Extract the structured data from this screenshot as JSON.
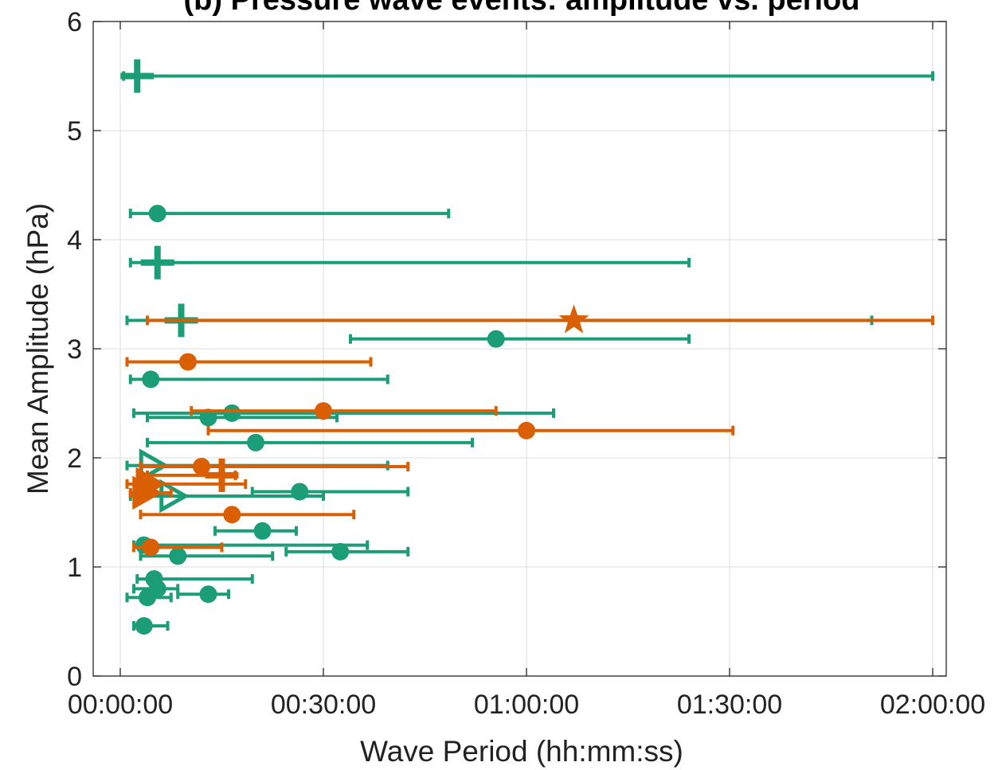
{
  "chart_data": {
    "type": "scatter",
    "title": "(b) Pressure wave events: amplitude vs. period",
    "xlabel": "Wave Period (hh:mm:ss)",
    "ylabel": "Mean Amplitude (hPa)",
    "x_unit": "minutes",
    "xlim": [
      -4,
      122
    ],
    "ylim": [
      0,
      6
    ],
    "x_ticks": [
      0,
      30,
      60,
      90,
      120
    ],
    "x_tick_labels": [
      "00:00:00",
      "00:30:00",
      "01:00:00",
      "01:30:00",
      "02:00:00"
    ],
    "y_ticks": [
      0,
      1,
      2,
      3,
      4,
      5,
      6
    ],
    "y_tick_labels": [
      "0",
      "1",
      "2",
      "3",
      "4",
      "5",
      "6"
    ],
    "grid": true,
    "colors": {
      "green": "#1b9e77",
      "orange": "#d95f02"
    },
    "series": [
      {
        "color": "green",
        "points": [
          {
            "x": 2.5,
            "y": 5.5,
            "xmin": 0.5,
            "xmax": 120,
            "marker": "plus"
          },
          {
            "x": 5.5,
            "y": 4.24,
            "xmin": 1.5,
            "xmax": 48.5,
            "marker": "circle"
          },
          {
            "x": 5.5,
            "y": 3.79,
            "xmin": 1.5,
            "xmax": 84,
            "marker": "plus"
          },
          {
            "x": 9,
            "y": 3.26,
            "xmin": 1,
            "xmax": 111,
            "marker": "plus"
          },
          {
            "x": 55.5,
            "y": 3.09,
            "xmin": 34,
            "xmax": 84,
            "marker": "circle"
          },
          {
            "x": 4.5,
            "y": 2.72,
            "xmin": 1.5,
            "xmax": 39.5,
            "marker": "circle"
          },
          {
            "x": 16.5,
            "y": 2.41,
            "xmin": 2,
            "xmax": 64,
            "marker": "circle"
          },
          {
            "x": 13,
            "y": 2.37,
            "xmin": 4,
            "xmax": 32,
            "marker": "circle"
          },
          {
            "x": 20,
            "y": 2.14,
            "xmin": 4,
            "xmax": 52,
            "marker": "circle"
          },
          {
            "x": 4.5,
            "y": 1.93,
            "xmin": 1,
            "xmax": 39.5,
            "marker": "triangle-right"
          },
          {
            "x": 26.5,
            "y": 1.69,
            "xmin": 19.5,
            "xmax": 42.5,
            "marker": "circle"
          },
          {
            "x": 7.5,
            "y": 1.65,
            "xmin": 1.5,
            "xmax": 30,
            "marker": "triangle-right"
          },
          {
            "x": 21,
            "y": 1.33,
            "xmin": 14,
            "xmax": 26,
            "marker": "circle"
          },
          {
            "x": 3.5,
            "y": 1.2,
            "xmin": 2,
            "xmax": 36.5,
            "marker": "circle"
          },
          {
            "x": 32.5,
            "y": 1.14,
            "xmin": 24.5,
            "xmax": 42.5,
            "marker": "circle"
          },
          {
            "x": 8.5,
            "y": 1.1,
            "xmin": 3,
            "xmax": 22.5,
            "marker": "circle"
          },
          {
            "x": 5,
            "y": 0.89,
            "xmin": 2.5,
            "xmax": 19.5,
            "marker": "circle"
          },
          {
            "x": 5.5,
            "y": 0.8,
            "xmin": 2,
            "xmax": 8.5,
            "marker": "circle"
          },
          {
            "x": 13,
            "y": 0.75,
            "xmin": 8.5,
            "xmax": 16,
            "marker": "circle"
          },
          {
            "x": 4,
            "y": 0.72,
            "xmin": 1,
            "xmax": 7.5,
            "marker": "circle"
          },
          {
            "x": 3.5,
            "y": 0.46,
            "xmin": 2,
            "xmax": 7,
            "marker": "circle"
          }
        ]
      },
      {
        "color": "orange",
        "points": [
          {
            "x": 67,
            "y": 3.26,
            "xmin": 4,
            "xmax": 120,
            "marker": "star"
          },
          {
            "x": 10,
            "y": 2.88,
            "xmin": 1,
            "xmax": 37,
            "marker": "circle"
          },
          {
            "x": 30,
            "y": 2.43,
            "xmin": 10.5,
            "xmax": 55.5,
            "marker": "circle"
          },
          {
            "x": 60,
            "y": 2.25,
            "xmin": 13,
            "xmax": 90.5,
            "marker": "circle"
          },
          {
            "x": 12,
            "y": 1.92,
            "xmin": 3,
            "xmax": 42.5,
            "marker": "circle"
          },
          {
            "x": 15,
            "y": 1.84,
            "xmin": 4,
            "xmax": 17,
            "marker": "plus"
          },
          {
            "x": 4,
            "y": 1.76,
            "xmin": 1,
            "xmax": 18.5,
            "marker": "triangle-right"
          },
          {
            "x": 3.5,
            "y": 1.68,
            "xmin": 1.5,
            "xmax": 7.5,
            "marker": "triangle-right"
          },
          {
            "x": 16.5,
            "y": 1.48,
            "xmin": 3,
            "xmax": 34.5,
            "marker": "circle"
          },
          {
            "x": 4.5,
            "y": 1.18,
            "xmin": 2,
            "xmax": 15,
            "marker": "circle"
          }
        ]
      }
    ]
  }
}
